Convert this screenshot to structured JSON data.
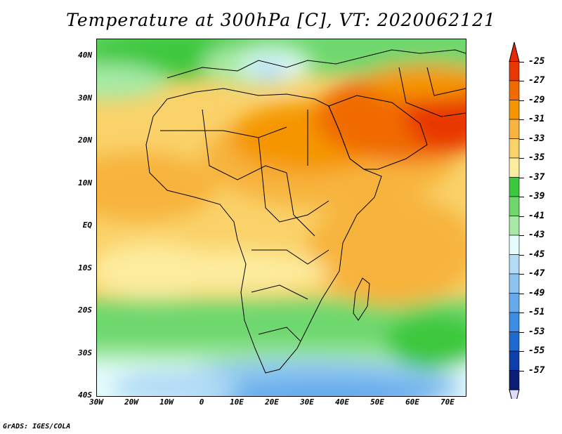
{
  "title": "Temperature at 300hPa [C], VT: 2020062121",
  "footer": "GrADS: IGES/COLA",
  "map": {
    "lat_labels": [
      "40N",
      "30N",
      "20N",
      "10N",
      "EQ",
      "10S",
      "20S",
      "30S",
      "40S"
    ],
    "lat_values": [
      40,
      30,
      20,
      10,
      0,
      -10,
      -20,
      -30,
      -40
    ],
    "lon_labels": [
      "30W",
      "20W",
      "10W",
      "0",
      "10E",
      "20E",
      "30E",
      "40E",
      "50E",
      "60E",
      "70E"
    ],
    "lon_values": [
      -30,
      -20,
      -10,
      0,
      10,
      20,
      30,
      40,
      50,
      60,
      70
    ],
    "lat_range": [
      -40,
      44
    ],
    "lon_range": [
      -30,
      75
    ]
  },
  "colorbar": {
    "labels": [
      "-25",
      "-27",
      "-29",
      "-31",
      "-33",
      "-35",
      "-37",
      "-39",
      "-41",
      "-43",
      "-45",
      "-47",
      "-49",
      "-51",
      "-53",
      "-55",
      "-57"
    ],
    "colors": [
      "#e83800",
      "#f06a00",
      "#f59600",
      "#f7b43e",
      "#fad26a",
      "#fdec9e",
      "#3cc83c",
      "#6ed86e",
      "#a6eaa6",
      "#e4fcfc",
      "#b2dcf6",
      "#8cc4f0",
      "#64aaec",
      "#3c8ce6",
      "#1e6ad0",
      "#0e3eac",
      "#0a1e78"
    ],
    "top_color": "#e82800",
    "bottom_color": "#dcdcfc"
  }
}
